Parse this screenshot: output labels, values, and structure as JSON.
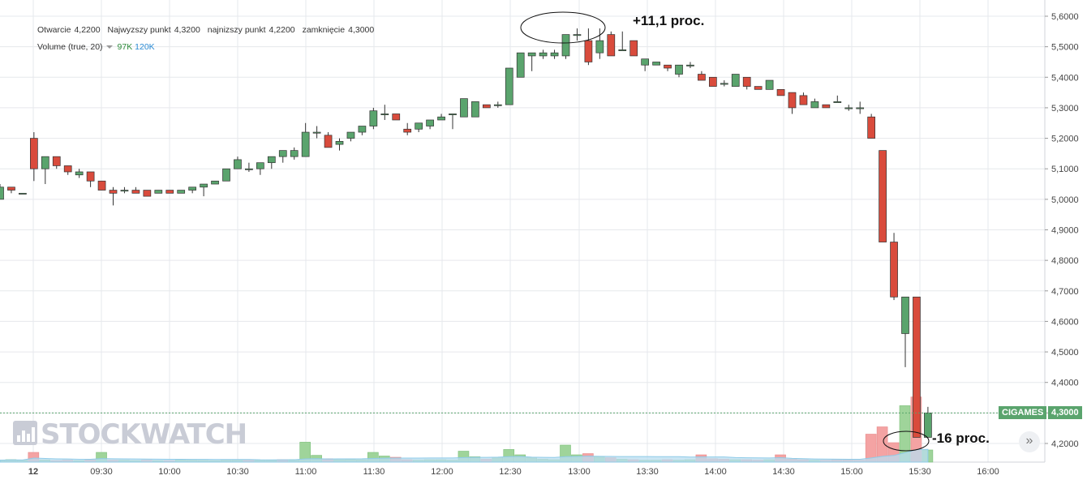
{
  "legend": {
    "open_label": "Otwarcie",
    "open_value": "4,2200",
    "high_label": "Najwyzszy punkt",
    "high_value": "4,3200",
    "low_label": "najnizszy punkt",
    "low_value": "4,2200",
    "close_label": "zamknięcie",
    "close_value": "4,3000",
    "volume_label": "Volume (true, 20)",
    "volume_value_1": "97K",
    "volume_value_2": "120K"
  },
  "annotations": {
    "top": "+11,1 proc.",
    "bottom": "-16 proc."
  },
  "watermark": "STOCKWATCH",
  "ticker": {
    "name": "CIGAMES",
    "price": "4,3000"
  },
  "scroll_button": "»",
  "colors": {
    "up": "#5aa46d",
    "down": "#d94b3c",
    "up_volume": "#9fd49a",
    "down_volume": "#f4a3a3",
    "volume_ma": "#b9def0"
  },
  "chart_data": {
    "type": "candlestick",
    "x_labels": [
      "12",
      "09:30",
      "10:00",
      "10:30",
      "11:00",
      "11:30",
      "12:00",
      "12:30",
      "13:00",
      "13:30",
      "14:00",
      "14:30",
      "15:00",
      "15:30",
      "16:00"
    ],
    "y_labels": [
      "5,6000",
      "5,5000",
      "5,4000",
      "5,3000",
      "5,2000",
      "5,1000",
      "5,0000",
      "4,9000",
      "4,8000",
      "4,7000",
      "4,6000",
      "4,5000",
      "4,4000",
      "4,3000",
      "4,2000"
    ],
    "ylim": [
      4.15,
      5.63
    ],
    "grid": true,
    "last_price": 4.3,
    "candles": [
      {
        "o": 5.0,
        "h": 5.05,
        "l": 5.0,
        "c": 5.04
      },
      {
        "o": 5.04,
        "h": 5.04,
        "l": 5.02,
        "c": 5.03
      },
      {
        "o": 5.02,
        "h": 5.02,
        "l": 5.02,
        "c": 5.02
      },
      {
        "o": 5.2,
        "h": 5.22,
        "l": 5.06,
        "c": 5.1
      },
      {
        "o": 5.1,
        "h": 5.14,
        "l": 5.05,
        "c": 5.14
      },
      {
        "o": 5.14,
        "h": 5.14,
        "l": 5.1,
        "c": 5.11
      },
      {
        "o": 5.11,
        "h": 5.11,
        "l": 5.08,
        "c": 5.09
      },
      {
        "o": 5.08,
        "h": 5.1,
        "l": 5.07,
        "c": 5.09
      },
      {
        "o": 5.09,
        "h": 5.09,
        "l": 5.04,
        "c": 5.06
      },
      {
        "o": 5.06,
        "h": 5.06,
        "l": 5.03,
        "c": 5.03
      },
      {
        "o": 5.03,
        "h": 5.04,
        "l": 4.98,
        "c": 5.02
      },
      {
        "o": 5.03,
        "h": 5.04,
        "l": 5.02,
        "c": 5.03
      },
      {
        "o": 5.03,
        "h": 5.04,
        "l": 5.02,
        "c": 5.02
      },
      {
        "o": 5.03,
        "h": 5.03,
        "l": 5.01,
        "c": 5.01
      },
      {
        "o": 5.02,
        "h": 5.03,
        "l": 5.02,
        "c": 5.03
      },
      {
        "o": 5.03,
        "h": 5.03,
        "l": 5.02,
        "c": 5.02
      },
      {
        "o": 5.02,
        "h": 5.03,
        "l": 5.02,
        "c": 5.03
      },
      {
        "o": 5.03,
        "h": 5.04,
        "l": 5.02,
        "c": 5.04
      },
      {
        "o": 5.04,
        "h": 5.05,
        "l": 5.01,
        "c": 5.05
      },
      {
        "o": 5.05,
        "h": 5.06,
        "l": 5.05,
        "c": 5.06
      },
      {
        "o": 5.06,
        "h": 5.1,
        "l": 5.06,
        "c": 5.1
      },
      {
        "o": 5.1,
        "h": 5.14,
        "l": 5.1,
        "c": 5.13
      },
      {
        "o": 5.1,
        "h": 5.12,
        "l": 5.09,
        "c": 5.1
      },
      {
        "o": 5.1,
        "h": 5.12,
        "l": 5.08,
        "c": 5.12
      },
      {
        "o": 5.12,
        "h": 5.14,
        "l": 5.1,
        "c": 5.14
      },
      {
        "o": 5.14,
        "h": 5.16,
        "l": 5.12,
        "c": 5.16
      },
      {
        "o": 5.14,
        "h": 5.17,
        "l": 5.13,
        "c": 5.16
      },
      {
        "o": 5.14,
        "h": 5.25,
        "l": 5.14,
        "c": 5.22
      },
      {
        "o": 5.22,
        "h": 5.24,
        "l": 5.2,
        "c": 5.22
      },
      {
        "o": 5.21,
        "h": 5.22,
        "l": 5.17,
        "c": 5.17
      },
      {
        "o": 5.18,
        "h": 5.2,
        "l": 5.16,
        "c": 5.19
      },
      {
        "o": 5.2,
        "h": 5.22,
        "l": 5.19,
        "c": 5.22
      },
      {
        "o": 5.22,
        "h": 5.24,
        "l": 5.21,
        "c": 5.24
      },
      {
        "o": 5.24,
        "h": 5.3,
        "l": 5.23,
        "c": 5.29
      },
      {
        "o": 5.28,
        "h": 5.31,
        "l": 5.26,
        "c": 5.28
      },
      {
        "o": 5.28,
        "h": 5.28,
        "l": 5.26,
        "c": 5.26
      },
      {
        "o": 5.23,
        "h": 5.25,
        "l": 5.21,
        "c": 5.22
      },
      {
        "o": 5.23,
        "h": 5.25,
        "l": 5.22,
        "c": 5.25
      },
      {
        "o": 5.24,
        "h": 5.26,
        "l": 5.23,
        "c": 5.26
      },
      {
        "o": 5.26,
        "h": 5.28,
        "l": 5.26,
        "c": 5.27
      },
      {
        "o": 5.28,
        "h": 5.28,
        "l": 5.23,
        "c": 5.28
      },
      {
        "o": 5.27,
        "h": 5.33,
        "l": 5.27,
        "c": 5.33
      },
      {
        "o": 5.27,
        "h": 5.32,
        "l": 5.27,
        "c": 5.32
      },
      {
        "o": 5.31,
        "h": 5.31,
        "l": 5.3,
        "c": 5.3
      },
      {
        "o": 5.31,
        "h": 5.32,
        "l": 5.3,
        "c": 5.31
      },
      {
        "o": 5.31,
        "h": 5.43,
        "l": 5.31,
        "c": 5.43
      },
      {
        "o": 5.4,
        "h": 5.48,
        "l": 5.4,
        "c": 5.48
      },
      {
        "o": 5.47,
        "h": 5.48,
        "l": 5.42,
        "c": 5.48
      },
      {
        "o": 5.47,
        "h": 5.49,
        "l": 5.46,
        "c": 5.48
      },
      {
        "o": 5.47,
        "h": 5.49,
        "l": 5.46,
        "c": 5.48
      },
      {
        "o": 5.47,
        "h": 5.54,
        "l": 5.46,
        "c": 5.54
      },
      {
        "o": 5.54,
        "h": 5.56,
        "l": 5.52,
        "c": 5.54
      },
      {
        "o": 5.52,
        "h": 5.56,
        "l": 5.44,
        "c": 5.45
      },
      {
        "o": 5.48,
        "h": 5.56,
        "l": 5.46,
        "c": 5.52
      },
      {
        "o": 5.54,
        "h": 5.55,
        "l": 5.47,
        "c": 5.47
      },
      {
        "o": 5.49,
        "h": 5.55,
        "l": 5.49,
        "c": 5.49
      },
      {
        "o": 5.52,
        "h": 5.52,
        "l": 5.47,
        "c": 5.47
      },
      {
        "o": 5.44,
        "h": 5.45,
        "l": 5.42,
        "c": 5.46
      },
      {
        "o": 5.44,
        "h": 5.45,
        "l": 5.44,
        "c": 5.45
      },
      {
        "o": 5.44,
        "h": 5.44,
        "l": 5.42,
        "c": 5.43
      },
      {
        "o": 5.41,
        "h": 5.44,
        "l": 5.4,
        "c": 5.44
      },
      {
        "o": 5.44,
        "h": 5.45,
        "l": 5.43,
        "c": 5.44
      },
      {
        "o": 5.41,
        "h": 5.42,
        "l": 5.39,
        "c": 5.39
      },
      {
        "o": 5.4,
        "h": 5.4,
        "l": 5.37,
        "c": 5.37
      },
      {
        "o": 5.38,
        "h": 5.39,
        "l": 5.37,
        "c": 5.38
      },
      {
        "o": 5.37,
        "h": 5.41,
        "l": 5.37,
        "c": 5.41
      },
      {
        "o": 5.4,
        "h": 5.4,
        "l": 5.36,
        "c": 5.37
      },
      {
        "o": 5.37,
        "h": 5.37,
        "l": 5.36,
        "c": 5.36
      },
      {
        "o": 5.36,
        "h": 5.39,
        "l": 5.36,
        "c": 5.39
      },
      {
        "o": 5.36,
        "h": 5.36,
        "l": 5.34,
        "c": 5.34
      },
      {
        "o": 5.35,
        "h": 5.35,
        "l": 5.28,
        "c": 5.3
      },
      {
        "o": 5.34,
        "h": 5.35,
        "l": 5.31,
        "c": 5.31
      },
      {
        "o": 5.3,
        "h": 5.33,
        "l": 5.3,
        "c": 5.32
      },
      {
        "o": 5.31,
        "h": 5.31,
        "l": 5.3,
        "c": 5.3
      },
      {
        "o": 5.32,
        "h": 5.34,
        "l": 5.32,
        "c": 5.32
      },
      {
        "o": 5.3,
        "h": 5.31,
        "l": 5.29,
        "c": 5.3
      },
      {
        "o": 5.3,
        "h": 5.32,
        "l": 5.28,
        "c": 5.3
      },
      {
        "o": 5.27,
        "h": 5.28,
        "l": 5.2,
        "c": 5.2
      },
      {
        "o": 5.16,
        "h": 5.16,
        "l": 4.86,
        "c": 4.86
      },
      {
        "o": 4.86,
        "h": 4.89,
        "l": 4.67,
        "c": 4.68
      },
      {
        "o": 4.56,
        "h": 4.68,
        "l": 4.45,
        "c": 4.68
      },
      {
        "o": 4.68,
        "h": 4.68,
        "l": 4.22,
        "c": 4.22
      },
      {
        "o": 4.22,
        "h": 4.32,
        "l": 4.22,
        "c": 4.3
      }
    ],
    "volume": [
      {
        "v": 8,
        "up": true
      },
      {
        "v": 10,
        "up": true
      },
      {
        "v": 8,
        "up": true
      },
      {
        "v": 40,
        "up": false
      },
      {
        "v": 9,
        "up": true
      },
      {
        "v": 6,
        "up": false
      },
      {
        "v": 8,
        "up": false
      },
      {
        "v": 6,
        "up": true
      },
      {
        "v": 10,
        "up": false
      },
      {
        "v": 40,
        "up": true
      },
      {
        "v": 8,
        "up": false
      },
      {
        "v": 8,
        "up": true
      },
      {
        "v": 6,
        "up": true
      },
      {
        "v": 8,
        "up": false
      },
      {
        "v": 6,
        "up": true
      },
      {
        "v": 6,
        "up": false
      },
      {
        "v": 10,
        "up": true
      },
      {
        "v": 8,
        "up": true
      },
      {
        "v": 7,
        "up": true
      },
      {
        "v": 6,
        "up": true
      },
      {
        "v": 8,
        "up": true
      },
      {
        "v": 10,
        "up": true
      },
      {
        "v": 10,
        "up": false
      },
      {
        "v": 8,
        "up": true
      },
      {
        "v": 8,
        "up": true
      },
      {
        "v": 10,
        "up": false
      },
      {
        "v": 10,
        "up": true
      },
      {
        "v": 82,
        "up": true
      },
      {
        "v": 28,
        "up": true
      },
      {
        "v": 14,
        "up": false
      },
      {
        "v": 10,
        "up": true
      },
      {
        "v": 12,
        "up": true
      },
      {
        "v": 10,
        "up": true
      },
      {
        "v": 40,
        "up": true
      },
      {
        "v": 25,
        "up": true
      },
      {
        "v": 20,
        "up": false
      },
      {
        "v": 10,
        "up": false
      },
      {
        "v": 8,
        "up": true
      },
      {
        "v": 10,
        "up": true
      },
      {
        "v": 10,
        "up": true
      },
      {
        "v": 8,
        "up": true
      },
      {
        "v": 45,
        "up": true
      },
      {
        "v": 22,
        "up": true
      },
      {
        "v": 12,
        "up": false
      },
      {
        "v": 20,
        "up": true
      },
      {
        "v": 52,
        "up": true
      },
      {
        "v": 30,
        "up": true
      },
      {
        "v": 20,
        "up": true
      },
      {
        "v": 12,
        "up": true
      },
      {
        "v": 10,
        "up": true
      },
      {
        "v": 70,
        "up": true
      },
      {
        "v": 30,
        "up": true
      },
      {
        "v": 35,
        "up": false
      },
      {
        "v": 22,
        "up": true
      },
      {
        "v": 18,
        "up": false
      },
      {
        "v": 12,
        "up": true
      },
      {
        "v": 10,
        "up": false
      },
      {
        "v": 8,
        "up": true
      },
      {
        "v": 8,
        "up": true
      },
      {
        "v": 10,
        "up": false
      },
      {
        "v": 8,
        "up": true
      },
      {
        "v": 10,
        "up": true
      },
      {
        "v": 30,
        "up": false
      },
      {
        "v": 14,
        "up": false
      },
      {
        "v": 12,
        "up": false
      },
      {
        "v": 10,
        "up": true
      },
      {
        "v": 10,
        "up": false
      },
      {
        "v": 8,
        "up": false
      },
      {
        "v": 10,
        "up": true
      },
      {
        "v": 30,
        "up": false
      },
      {
        "v": 12,
        "up": false
      },
      {
        "v": 10,
        "up": false
      },
      {
        "v": 8,
        "up": true
      },
      {
        "v": 8,
        "up": false
      },
      {
        "v": 10,
        "up": false
      },
      {
        "v": 10,
        "up": false
      },
      {
        "v": 8,
        "up": false
      },
      {
        "v": 115,
        "up": false
      },
      {
        "v": 145,
        "up": false
      },
      {
        "v": 80,
        "up": false
      },
      {
        "v": 232,
        "up": true
      },
      {
        "v": 268,
        "up": false
      },
      {
        "v": 50,
        "up": true
      }
    ]
  }
}
